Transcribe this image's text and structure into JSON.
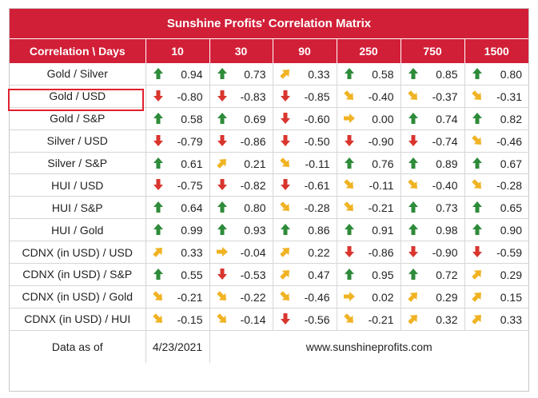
{
  "title": "Sunshine Profits' Correlation Matrix",
  "header": [
    "Correlation \\ Days",
    "10",
    "30",
    "90",
    "250",
    "750",
    "1500"
  ],
  "rows": [
    {
      "label": "Gold / Silver",
      "cells": [
        {
          "dir": "up",
          "v": "0.94"
        },
        {
          "dir": "up",
          "v": "0.73"
        },
        {
          "dir": "up-right",
          "v": "0.33"
        },
        {
          "dir": "up",
          "v": "0.58"
        },
        {
          "dir": "up",
          "v": "0.85"
        },
        {
          "dir": "up",
          "v": "0.80"
        }
      ]
    },
    {
      "label": "Gold / USD",
      "cells": [
        {
          "dir": "down",
          "v": "-0.80"
        },
        {
          "dir": "down",
          "v": "-0.83"
        },
        {
          "dir": "down",
          "v": "-0.85"
        },
        {
          "dir": "down-right",
          "v": "-0.40"
        },
        {
          "dir": "down-right",
          "v": "-0.37"
        },
        {
          "dir": "down-right",
          "v": "-0.31"
        }
      ]
    },
    {
      "label": "Gold / S&P",
      "cells": [
        {
          "dir": "up",
          "v": "0.58"
        },
        {
          "dir": "up",
          "v": "0.69"
        },
        {
          "dir": "down",
          "v": "-0.60"
        },
        {
          "dir": "right",
          "v": "0.00"
        },
        {
          "dir": "up",
          "v": "0.74"
        },
        {
          "dir": "up",
          "v": "0.82"
        }
      ]
    },
    {
      "label": "Silver / USD",
      "cells": [
        {
          "dir": "down",
          "v": "-0.79"
        },
        {
          "dir": "down",
          "v": "-0.86"
        },
        {
          "dir": "down",
          "v": "-0.50"
        },
        {
          "dir": "down",
          "v": "-0.90"
        },
        {
          "dir": "down",
          "v": "-0.74"
        },
        {
          "dir": "down-right",
          "v": "-0.46"
        }
      ]
    },
    {
      "label": "Silver / S&P",
      "cells": [
        {
          "dir": "up",
          "v": "0.61"
        },
        {
          "dir": "up-right",
          "v": "0.21"
        },
        {
          "dir": "down-right",
          "v": "-0.11"
        },
        {
          "dir": "up",
          "v": "0.76"
        },
        {
          "dir": "up",
          "v": "0.89"
        },
        {
          "dir": "up",
          "v": "0.67"
        }
      ]
    },
    {
      "label": "HUI / USD",
      "cells": [
        {
          "dir": "down",
          "v": "-0.75"
        },
        {
          "dir": "down",
          "v": "-0.82"
        },
        {
          "dir": "down",
          "v": "-0.61"
        },
        {
          "dir": "down-right",
          "v": "-0.11"
        },
        {
          "dir": "down-right",
          "v": "-0.40"
        },
        {
          "dir": "down-right",
          "v": "-0.28"
        }
      ]
    },
    {
      "label": "HUI / S&P",
      "cells": [
        {
          "dir": "up",
          "v": "0.64"
        },
        {
          "dir": "up",
          "v": "0.80"
        },
        {
          "dir": "down-right",
          "v": "-0.28"
        },
        {
          "dir": "down-right",
          "v": "-0.21"
        },
        {
          "dir": "up",
          "v": "0.73"
        },
        {
          "dir": "up",
          "v": "0.65"
        }
      ]
    },
    {
      "label": "HUI / Gold",
      "cells": [
        {
          "dir": "up",
          "v": "0.99"
        },
        {
          "dir": "up",
          "v": "0.93"
        },
        {
          "dir": "up",
          "v": "0.86"
        },
        {
          "dir": "up",
          "v": "0.91"
        },
        {
          "dir": "up",
          "v": "0.98"
        },
        {
          "dir": "up",
          "v": "0.90"
        }
      ]
    },
    {
      "label": "CDNX (in USD) / USD",
      "cells": [
        {
          "dir": "up-right",
          "v": "0.33"
        },
        {
          "dir": "right",
          "v": "-0.04"
        },
        {
          "dir": "up-right",
          "v": "0.22"
        },
        {
          "dir": "down",
          "v": "-0.86"
        },
        {
          "dir": "down",
          "v": "-0.90"
        },
        {
          "dir": "down",
          "v": "-0.59"
        }
      ]
    },
    {
      "label": "CDNX (in USD) / S&P",
      "cells": [
        {
          "dir": "up",
          "v": "0.55"
        },
        {
          "dir": "down",
          "v": "-0.53"
        },
        {
          "dir": "up-right",
          "v": "0.47"
        },
        {
          "dir": "up",
          "v": "0.95"
        },
        {
          "dir": "up",
          "v": "0.72"
        },
        {
          "dir": "up-right",
          "v": "0.29"
        }
      ]
    },
    {
      "label": "CDNX (in USD) / Gold",
      "cells": [
        {
          "dir": "down-right",
          "v": "-0.21"
        },
        {
          "dir": "down-right",
          "v": "-0.22"
        },
        {
          "dir": "down-right",
          "v": "-0.46"
        },
        {
          "dir": "right",
          "v": "0.02"
        },
        {
          "dir": "up-right",
          "v": "0.29"
        },
        {
          "dir": "up-right",
          "v": "0.15"
        }
      ]
    },
    {
      "label": "CDNX (in USD) / HUI",
      "cells": [
        {
          "dir": "down-right",
          "v": "-0.15"
        },
        {
          "dir": "down-right",
          "v": "-0.14"
        },
        {
          "dir": "down",
          "v": "-0.56"
        },
        {
          "dir": "down-right",
          "v": "-0.21"
        },
        {
          "dir": "up-right",
          "v": "0.32"
        },
        {
          "dir": "up-right",
          "v": "0.33"
        }
      ]
    }
  ],
  "footer": {
    "label": "Data as of",
    "date": "4/23/2021",
    "website": "www.sunshineprofits.com"
  },
  "highlighted_row": "Gold / USD",
  "colors": {
    "header": "#d21f38",
    "up": "#2e8b3a",
    "down": "#d9352e",
    "diagonal": "#f0b323",
    "highlight": "#e02030"
  }
}
